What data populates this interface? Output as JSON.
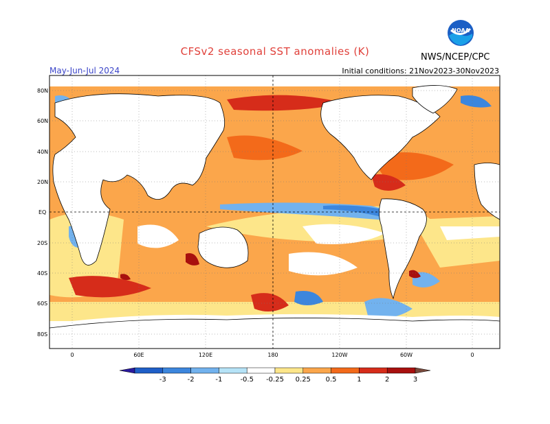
{
  "header": {
    "title": "CFSv2 seasonal SST anomalies (K)",
    "agency": "NWS/NCEP/CPC",
    "logo_text": "NOAA",
    "period": "May-Jun-Jul 2024",
    "initial_conditions": "Initial conditions: 21Nov2023-30Nov2023"
  },
  "map": {
    "lat_labels": [
      "80N",
      "60N",
      "40N",
      "20N",
      "EQ",
      "20S",
      "40S",
      "60S",
      "80S"
    ],
    "lon_labels": [
      "0",
      "60E",
      "120E",
      "180",
      "120W",
      "60W",
      "0"
    ]
  },
  "colorbar": {
    "labels": [
      "-3",
      "-2",
      "-1",
      "-0.5",
      "-0.25",
      "0.25",
      "0.5",
      "1",
      "2",
      "3"
    ],
    "colors": [
      "#2a1a9e",
      "#1f5fc8",
      "#3c86dd",
      "#72b2ee",
      "#b6e3f7",
      "#ffffff",
      "#fde68a",
      "#fba64b",
      "#f36a1a",
      "#d62c1a",
      "#a8100e",
      "#7a4a3c"
    ]
  }
}
